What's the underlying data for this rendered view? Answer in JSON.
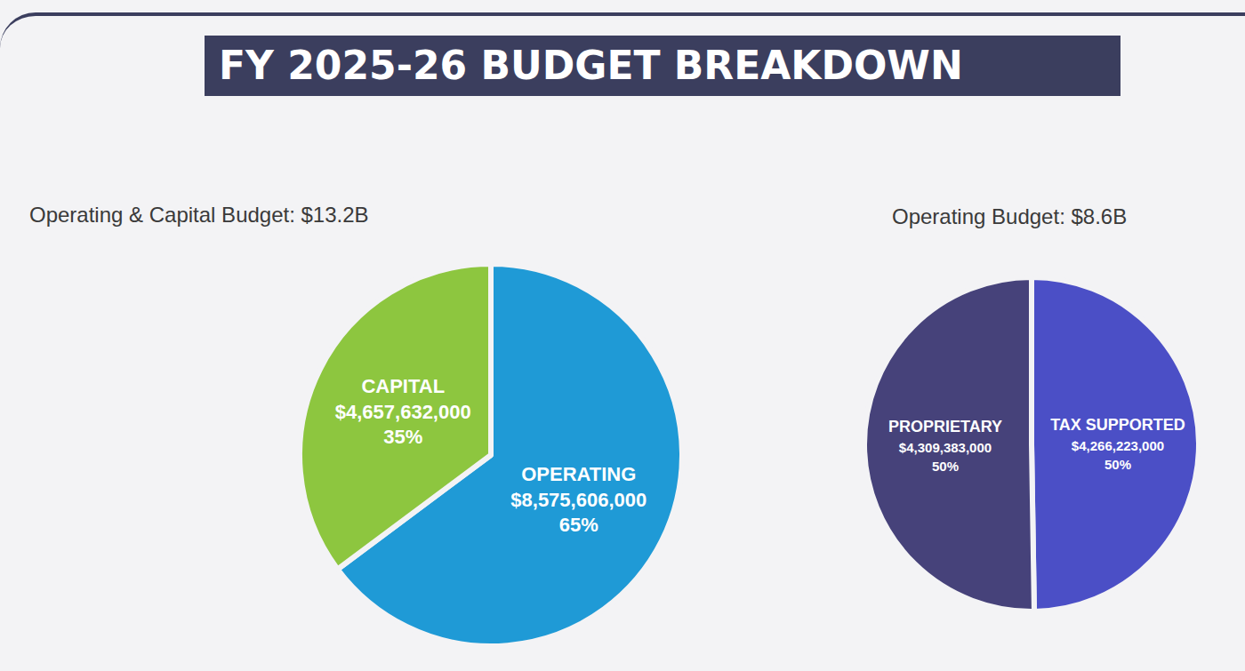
{
  "title": "FY 2025-26 BUDGET BREAKDOWN",
  "chart_data": [
    {
      "type": "pie",
      "title": "Operating & Capital Budget: $13.2B",
      "categories": [
        "OPERATING",
        "CAPITAL"
      ],
      "values": [
        8575606000,
        4657632000
      ],
      "value_labels": [
        "$8,575,606,000",
        "$4,657,632,000"
      ],
      "percent_labels": [
        "65%",
        "35%"
      ],
      "colors": [
        "#1f9ad6",
        "#8dc63f"
      ],
      "data_labels": true,
      "legend": false
    },
    {
      "type": "pie",
      "title": "Operating Budget: $8.6B",
      "categories": [
        "TAX SUPPORTED",
        "PROPRIETARY"
      ],
      "values": [
        4266223000,
        4309383000
      ],
      "value_labels": [
        "$4,266,223,000",
        "$4,309,383,000"
      ],
      "percent_labels": [
        "50%",
        "50%"
      ],
      "colors": [
        "#4b4fc6",
        "#46427a"
      ],
      "data_labels": true,
      "legend": false
    }
  ]
}
